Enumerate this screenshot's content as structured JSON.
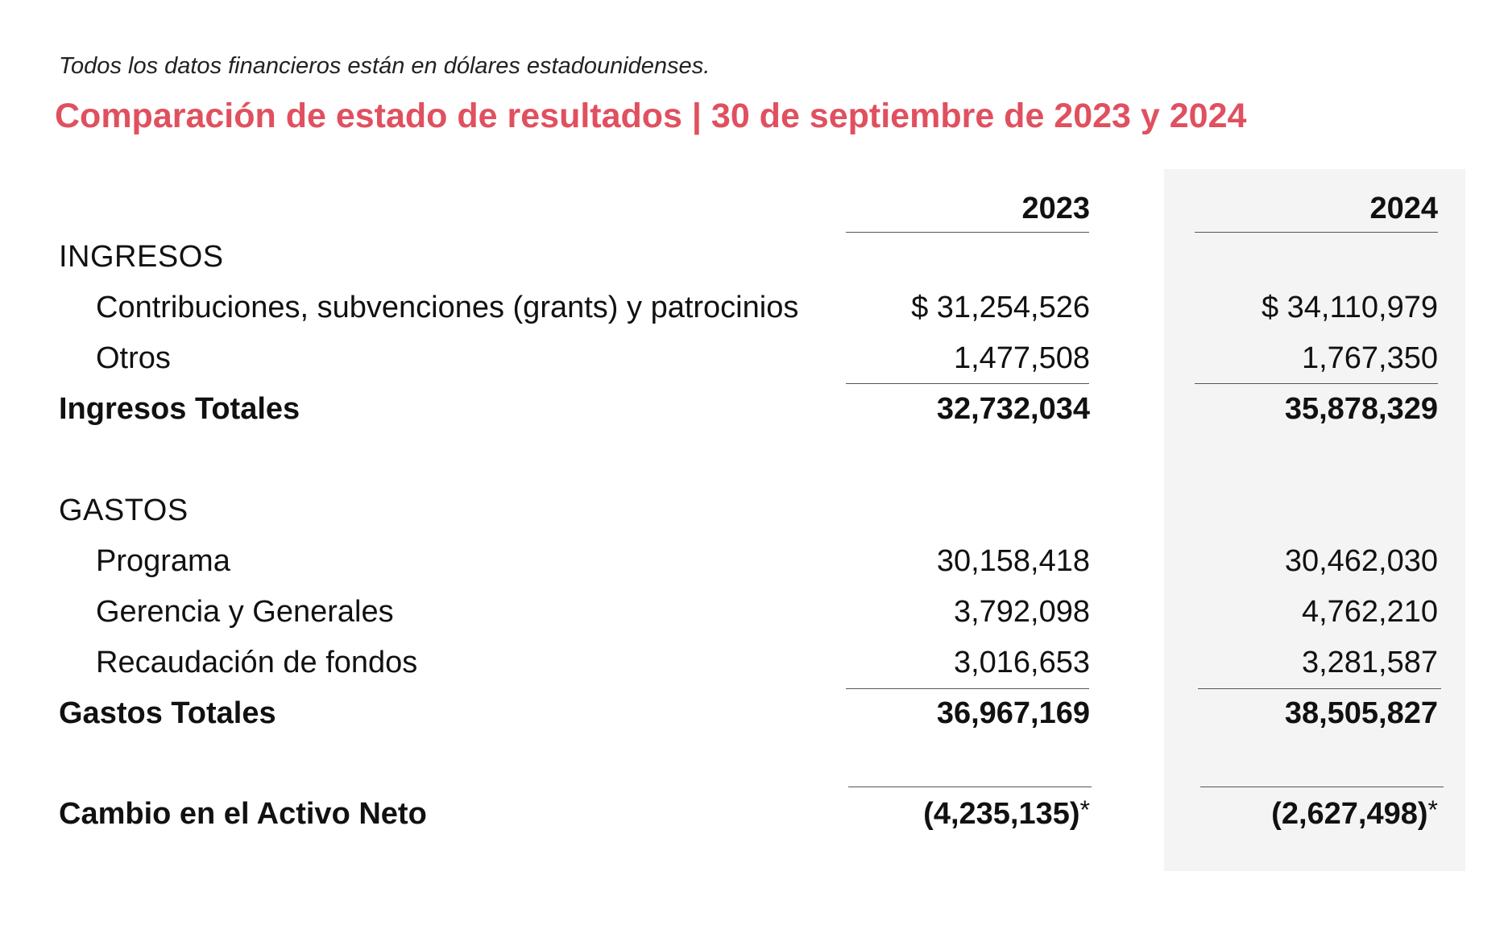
{
  "note": "Todos los datos financieros están en dólares estadounidenses.",
  "title": "Comparación de estado de resultados | 30 de septiembre de 2023 y 2024",
  "columns": [
    "2023",
    "2024"
  ],
  "income": {
    "heading": "INGRESOS",
    "rows": [
      {
        "label": "Contribuciones, subvenciones (grants) y patrocinios",
        "v2023": "$ 31,254,526",
        "v2024": "$ 34,110,979"
      },
      {
        "label": "Otros",
        "v2023": "1,477,508",
        "v2024": "1,767,350"
      }
    ],
    "total": {
      "label": "Ingresos Totales",
      "v2023": "32,732,034",
      "v2024": "35,878,329"
    }
  },
  "expenses": {
    "heading": "GASTOS",
    "rows": [
      {
        "label": "Programa",
        "v2023": "30,158,418",
        "v2024": "30,462,030"
      },
      {
        "label": "Gerencia y Generales",
        "v2023": "3,792,098",
        "v2024": "4,762,210"
      },
      {
        "label": "Recaudación de fondos",
        "v2023": "3,016,653",
        "v2024": "3,281,587"
      }
    ],
    "total": {
      "label": "Gastos Totales",
      "v2023": "36,967,169",
      "v2024": "38,505,827"
    }
  },
  "net": {
    "label": "Cambio en el Activo Neto",
    "v2023": "(4,235,135)",
    "v2024": "(2,627,498)",
    "marker": "*"
  }
}
